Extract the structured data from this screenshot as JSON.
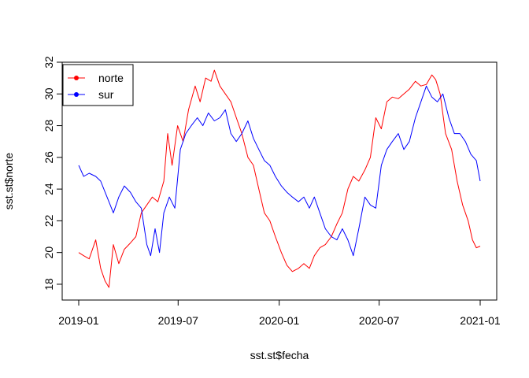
{
  "chart_data": {
    "type": "line",
    "title": "",
    "xlabel": "sst.st$fecha",
    "ylabel": "sst.st$norte",
    "x_range": [
      "2019-01-01",
      "2021-01-01"
    ],
    "ylim": [
      17.6,
      32.0
    ],
    "x_ticks": [
      {
        "date": "2019-01-01",
        "label": "2019-01"
      },
      {
        "date": "2019-07-01",
        "label": "2019-07"
      },
      {
        "date": "2020-01-01",
        "label": "2020-01"
      },
      {
        "date": "2020-07-01",
        "label": "2020-07"
      },
      {
        "date": "2021-01-01",
        "label": "2021-01"
      }
    ],
    "y_ticks": [
      18,
      20,
      22,
      24,
      26,
      28,
      30,
      32
    ],
    "y_tick_labels": [
      "18",
      "20",
      "22",
      "24",
      "26",
      "28",
      "30",
      "32"
    ],
    "legend_position": "top-left",
    "series": [
      {
        "name": "norte",
        "color": "#ff0000",
        "points": [
          [
            "2019-01-01",
            20.0
          ],
          [
            "2019-01-10",
            19.8
          ],
          [
            "2019-01-20",
            19.6
          ],
          [
            "2019-02-01",
            20.8
          ],
          [
            "2019-02-10",
            19.0
          ],
          [
            "2019-02-18",
            18.2
          ],
          [
            "2019-02-25",
            17.8
          ],
          [
            "2019-03-05",
            20.5
          ],
          [
            "2019-03-15",
            19.3
          ],
          [
            "2019-03-25",
            20.2
          ],
          [
            "2019-04-05",
            20.6
          ],
          [
            "2019-04-15",
            21.0
          ],
          [
            "2019-04-25",
            22.5
          ],
          [
            "2019-05-05",
            23.0
          ],
          [
            "2019-05-15",
            23.5
          ],
          [
            "2019-05-25",
            23.2
          ],
          [
            "2019-06-05",
            24.5
          ],
          [
            "2019-06-12",
            27.5
          ],
          [
            "2019-06-20",
            25.5
          ],
          [
            "2019-06-30",
            28.0
          ],
          [
            "2019-07-10",
            27.0
          ],
          [
            "2019-07-20",
            29.0
          ],
          [
            "2019-08-01",
            30.5
          ],
          [
            "2019-08-10",
            29.5
          ],
          [
            "2019-08-20",
            31.0
          ],
          [
            "2019-08-30",
            30.8
          ],
          [
            "2019-09-05",
            31.5
          ],
          [
            "2019-09-15",
            30.5
          ],
          [
            "2019-09-25",
            30.0
          ],
          [
            "2019-10-05",
            29.5
          ],
          [
            "2019-10-15",
            28.5
          ],
          [
            "2019-10-25",
            27.5
          ],
          [
            "2019-11-05",
            26.0
          ],
          [
            "2019-11-15",
            25.5
          ],
          [
            "2019-11-25",
            24.0
          ],
          [
            "2019-12-05",
            22.5
          ],
          [
            "2019-12-15",
            22.0
          ],
          [
            "2019-12-25",
            21.0
          ],
          [
            "2020-01-05",
            20.0
          ],
          [
            "2020-01-15",
            19.2
          ],
          [
            "2020-01-25",
            18.8
          ],
          [
            "2020-02-05",
            19.0
          ],
          [
            "2020-02-15",
            19.3
          ],
          [
            "2020-02-25",
            19.0
          ],
          [
            "2020-03-05",
            19.8
          ],
          [
            "2020-03-15",
            20.3
          ],
          [
            "2020-03-25",
            20.5
          ],
          [
            "2020-04-05",
            21.0
          ],
          [
            "2020-04-15",
            21.8
          ],
          [
            "2020-04-25",
            22.5
          ],
          [
            "2020-05-05",
            24.0
          ],
          [
            "2020-05-15",
            24.8
          ],
          [
            "2020-05-25",
            24.5
          ],
          [
            "2020-06-05",
            25.2
          ],
          [
            "2020-06-15",
            26.0
          ],
          [
            "2020-06-25",
            28.5
          ],
          [
            "2020-07-05",
            27.8
          ],
          [
            "2020-07-15",
            29.5
          ],
          [
            "2020-07-25",
            29.8
          ],
          [
            "2020-08-05",
            29.7
          ],
          [
            "2020-08-15",
            30.0
          ],
          [
            "2020-08-25",
            30.3
          ],
          [
            "2020-09-05",
            30.8
          ],
          [
            "2020-09-15",
            30.5
          ],
          [
            "2020-09-25",
            30.6
          ],
          [
            "2020-10-05",
            31.2
          ],
          [
            "2020-10-12",
            30.9
          ],
          [
            "2020-10-20",
            30.0
          ],
          [
            "2020-10-30",
            27.5
          ],
          [
            "2020-11-10",
            26.5
          ],
          [
            "2020-11-20",
            24.5
          ],
          [
            "2020-11-30",
            23.0
          ],
          [
            "2020-12-10",
            22.0
          ],
          [
            "2020-12-18",
            20.8
          ],
          [
            "2020-12-25",
            20.3
          ],
          [
            "2021-01-01",
            20.4
          ]
        ]
      },
      {
        "name": "sur",
        "color": "#0000ff",
        "points": [
          [
            "2019-01-01",
            25.5
          ],
          [
            "2019-01-10",
            24.8
          ],
          [
            "2019-01-20",
            25.0
          ],
          [
            "2019-02-01",
            24.8
          ],
          [
            "2019-02-10",
            24.5
          ],
          [
            "2019-02-18",
            23.8
          ],
          [
            "2019-02-25",
            23.2
          ],
          [
            "2019-03-05",
            22.5
          ],
          [
            "2019-03-15",
            23.5
          ],
          [
            "2019-03-25",
            24.2
          ],
          [
            "2019-04-05",
            23.8
          ],
          [
            "2019-04-15",
            23.2
          ],
          [
            "2019-04-25",
            22.8
          ],
          [
            "2019-05-05",
            20.5
          ],
          [
            "2019-05-12",
            19.8
          ],
          [
            "2019-05-20",
            21.5
          ],
          [
            "2019-05-28",
            20.0
          ],
          [
            "2019-06-05",
            22.5
          ],
          [
            "2019-06-15",
            23.5
          ],
          [
            "2019-06-25",
            22.8
          ],
          [
            "2019-07-05",
            26.5
          ],
          [
            "2019-07-15",
            27.5
          ],
          [
            "2019-07-25",
            28.0
          ],
          [
            "2019-08-05",
            28.5
          ],
          [
            "2019-08-15",
            28.0
          ],
          [
            "2019-08-25",
            28.8
          ],
          [
            "2019-09-05",
            28.3
          ],
          [
            "2019-09-15",
            28.5
          ],
          [
            "2019-09-25",
            29.0
          ],
          [
            "2019-10-05",
            27.5
          ],
          [
            "2019-10-15",
            27.0
          ],
          [
            "2019-10-25",
            27.5
          ],
          [
            "2019-11-05",
            28.3
          ],
          [
            "2019-11-15",
            27.2
          ],
          [
            "2019-11-25",
            26.5
          ],
          [
            "2019-12-05",
            25.8
          ],
          [
            "2019-12-15",
            25.5
          ],
          [
            "2019-12-25",
            24.8
          ],
          [
            "2020-01-05",
            24.2
          ],
          [
            "2020-01-15",
            23.8
          ],
          [
            "2020-01-25",
            23.5
          ],
          [
            "2020-02-05",
            23.2
          ],
          [
            "2020-02-15",
            23.5
          ],
          [
            "2020-02-25",
            22.8
          ],
          [
            "2020-03-05",
            23.5
          ],
          [
            "2020-03-15",
            22.5
          ],
          [
            "2020-03-25",
            21.5
          ],
          [
            "2020-04-05",
            21.0
          ],
          [
            "2020-04-15",
            20.8
          ],
          [
            "2020-04-25",
            21.5
          ],
          [
            "2020-05-05",
            20.8
          ],
          [
            "2020-05-15",
            19.8
          ],
          [
            "2020-05-25",
            21.5
          ],
          [
            "2020-06-05",
            23.5
          ],
          [
            "2020-06-15",
            23.0
          ],
          [
            "2020-06-25",
            22.8
          ],
          [
            "2020-07-05",
            25.5
          ],
          [
            "2020-07-15",
            26.5
          ],
          [
            "2020-07-25",
            27.0
          ],
          [
            "2020-08-05",
            27.5
          ],
          [
            "2020-08-15",
            26.5
          ],
          [
            "2020-08-25",
            27.0
          ],
          [
            "2020-09-05",
            28.5
          ],
          [
            "2020-09-15",
            29.5
          ],
          [
            "2020-09-25",
            30.5
          ],
          [
            "2020-10-05",
            29.8
          ],
          [
            "2020-10-15",
            29.5
          ],
          [
            "2020-10-25",
            30.0
          ],
          [
            "2020-11-05",
            28.5
          ],
          [
            "2020-11-15",
            27.5
          ],
          [
            "2020-11-25",
            27.5
          ],
          [
            "2020-12-05",
            27.0
          ],
          [
            "2020-12-15",
            26.2
          ],
          [
            "2020-12-25",
            25.8
          ],
          [
            "2021-01-01",
            24.5
          ]
        ]
      }
    ]
  }
}
